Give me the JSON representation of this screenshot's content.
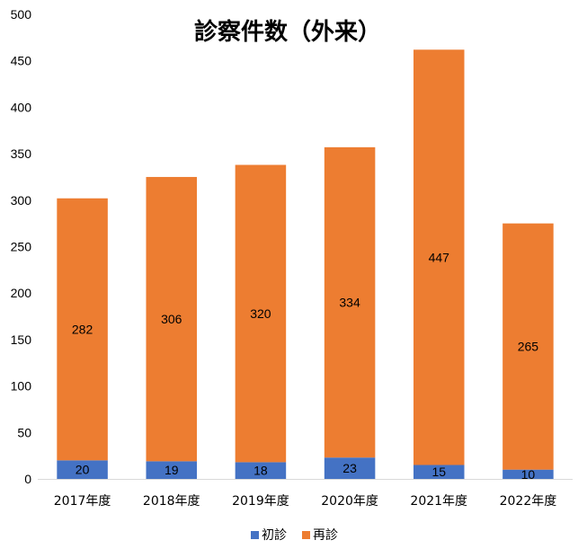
{
  "chart_data": {
    "type": "bar",
    "stacked": true,
    "title": "診察件数（外来）",
    "categories": [
      "2017年度",
      "2018年度",
      "2019年度",
      "2020年度",
      "2021年度",
      "2022年度"
    ],
    "series": [
      {
        "name": "初診",
        "values": [
          20,
          19,
          18,
          23,
          15,
          10
        ],
        "color": "#4472C4"
      },
      {
        "name": "再診",
        "values": [
          282,
          306,
          320,
          334,
          447,
          265
        ],
        "color": "#ED7D31"
      }
    ],
    "ylim": [
      0,
      500
    ],
    "yticks": [
      0,
      50,
      100,
      150,
      200,
      250,
      300,
      350,
      400,
      450,
      500
    ],
    "grid": false,
    "legend_position": "bottom"
  }
}
